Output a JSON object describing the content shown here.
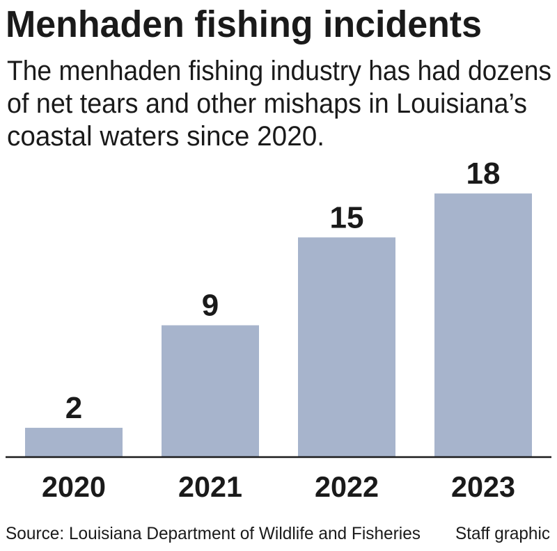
{
  "chart_data": {
    "type": "bar",
    "title": "Menhaden fishing incidents",
    "subtitle": [
      "The menhaden fishing industry has had dozens",
      "of net tears and other mishaps in Louisiana’s",
      "coastal waters since 2020."
    ],
    "categories": [
      "2020",
      "2021",
      "2022",
      "2023"
    ],
    "values": [
      2,
      9,
      15,
      18
    ],
    "color": "#a7b4cc",
    "source": "Source: Louisiana Department of Wildlife and Fisheries",
    "credit": "Staff graphic"
  }
}
